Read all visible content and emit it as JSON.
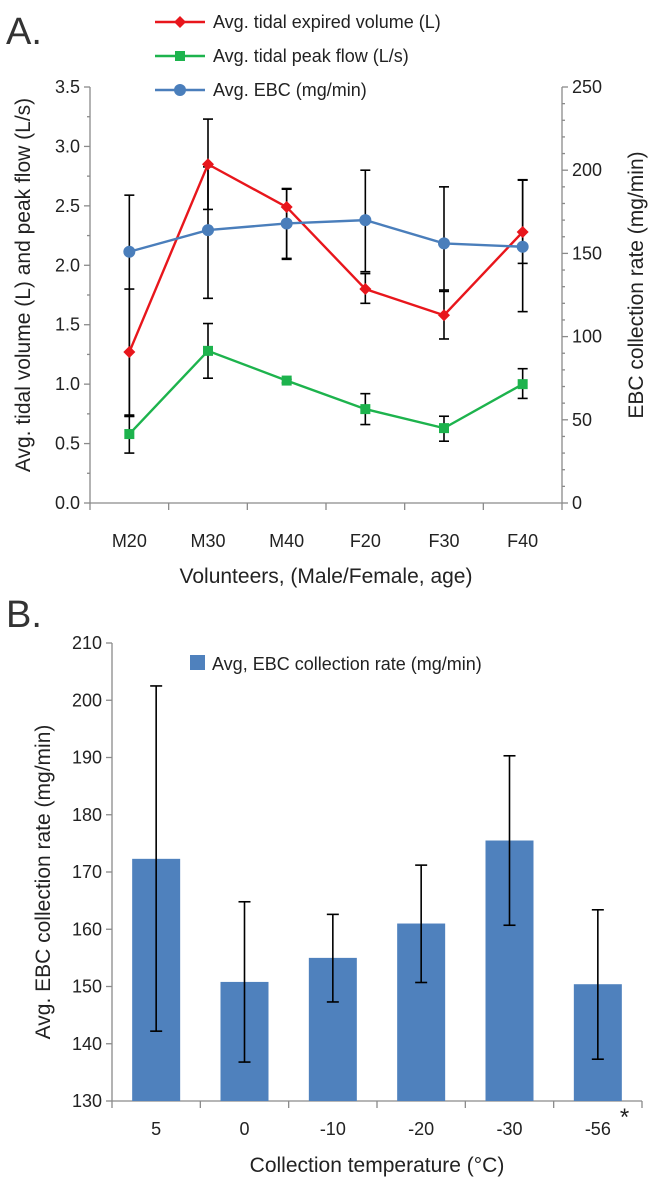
{
  "panels": {
    "a_label": "A.",
    "b_label": "B."
  },
  "chart_data": [
    {
      "type": "line",
      "categories": [
        "M20",
        "M30",
        "M40",
        "F20",
        "F30",
        "F40"
      ],
      "xlabel": "Volunteers, (Male/Female, age)",
      "ylabel": "Avg. tidal volume (L) and peak flow (L/s)",
      "y2label": "EBC collection rate (mg/min)",
      "ylim": [
        0,
        3.5
      ],
      "yticks": [
        "0.0",
        "0.5",
        "1.0",
        "1.5",
        "2.0",
        "2.5",
        "3.0",
        "3.5"
      ],
      "y2lim": [
        0,
        250
      ],
      "y2ticks": [
        "0",
        "50",
        "100",
        "150",
        "200",
        "250"
      ],
      "legend_position": "top-left",
      "series": [
        {
          "name": "Avg. tidal expired volume (L)",
          "axis": "left",
          "color": "#e8161c",
          "marker": "diamond",
          "values": [
            1.27,
            2.85,
            2.49,
            1.8,
            1.58,
            2.28
          ],
          "err_low": [
            0.74,
            2.47,
            2.05,
            1.68,
            1.38,
            1.61
          ],
          "err_high": [
            1.8,
            3.23,
            2.64,
            1.93,
            1.78,
            2.72
          ]
        },
        {
          "name": "Avg. tidal peak flow (L/s)",
          "axis": "left",
          "color": "#1db34d",
          "marker": "square",
          "values": [
            0.58,
            1.28,
            1.03,
            0.79,
            0.63,
            1.0
          ],
          "err_low": [
            0.42,
            1.05,
            1.01,
            0.66,
            0.52,
            0.88
          ],
          "err_high": [
            0.73,
            1.51,
            1.04,
            0.92,
            0.73,
            1.13
          ]
        },
        {
          "name": "Avg. EBC (mg/min)",
          "axis": "right",
          "color": "#4a7ebb",
          "marker": "circle",
          "values": [
            151,
            164,
            168,
            170,
            156,
            154
          ],
          "err_low": [
            52,
            123,
            147,
            139,
            128,
            144
          ],
          "err_high": [
            185,
            202,
            189,
            200,
            190,
            194
          ]
        }
      ]
    },
    {
      "type": "bar",
      "categories": [
        "5",
        "0",
        "-10",
        "-20",
        "-30",
        "-56"
      ],
      "values": [
        172.3,
        150.8,
        155.0,
        161.0,
        175.5,
        150.4
      ],
      "err_low": [
        142.2,
        136.8,
        147.3,
        150.7,
        160.7,
        137.3
      ],
      "err_high": [
        202.5,
        164.8,
        162.6,
        171.2,
        190.3,
        163.4
      ],
      "series_name": "Avg, EBC collection rate (mg/min)",
      "color": "#4f81bd",
      "xlabel": "Collection temperature (°C)",
      "ylabel": "Avg. EBC collection rate (mg/min)",
      "ylim": [
        130,
        210
      ],
      "yticks": [
        "130",
        "140",
        "150",
        "160",
        "170",
        "180",
        "190",
        "200",
        "210"
      ],
      "annotation": "*",
      "legend_position": "top"
    }
  ]
}
